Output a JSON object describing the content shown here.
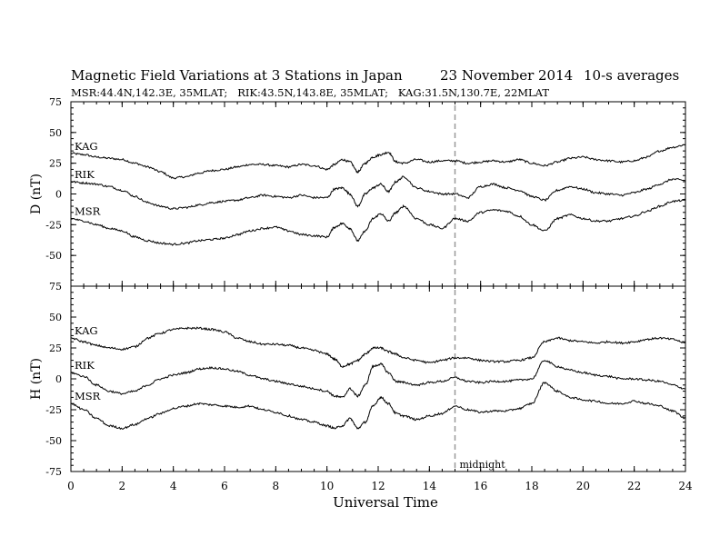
{
  "chart_data": {
    "type": "line",
    "title": "Magnetic Field Variations at 3 Stations in Japan",
    "date_text": "23 November 2014",
    "averaging": "10-s averages",
    "subtitle": "MSR:44.4N,142.3E, 35MLAT;   RIK:43.5N,143.8E, 35MLAT;   KAG:31.5N,130.7E, 22MLAT",
    "xlabel": "Universal Time",
    "xlim": [
      0,
      24
    ],
    "xticks": [
      0,
      2,
      4,
      6,
      8,
      10,
      12,
      14,
      16,
      18,
      20,
      22,
      24
    ],
    "midnight": {
      "x": 15,
      "label": "midnight"
    },
    "panels": [
      {
        "ylabel": "D (nT)",
        "ylim": [
          -75,
          75
        ],
        "yticks": [
          75,
          50,
          25,
          0,
          -25,
          -50,
          -75
        ],
        "series": [
          {
            "name": "KAG",
            "x": [
              0,
              0.5,
              1,
              1.5,
              2,
              2.5,
              3,
              3.5,
              4,
              4.5,
              5,
              5.5,
              6,
              6.5,
              7,
              7.5,
              8,
              8.5,
              9,
              9.5,
              10,
              10.3,
              10.6,
              10.9,
              11.2,
              11.5,
              11.8,
              12.1,
              12.4,
              12.7,
              13,
              13.5,
              14,
              14.5,
              15,
              15.5,
              16,
              16.5,
              17,
              17.5,
              18,
              18.5,
              19,
              19.5,
              20,
              20.5,
              21,
              21.5,
              22,
              22.5,
              23,
              23.5,
              24
            ],
            "values": [
              33,
              32,
              30,
              29,
              28,
              25,
              22,
              18,
              13,
              14,
              17,
              19,
              20,
              22,
              24,
              24,
              23,
              22,
              24,
              23,
              20,
              24,
              28,
              26,
              18,
              25,
              30,
              32,
              34,
              26,
              25,
              28,
              26,
              27,
              27,
              25,
              26,
              27,
              26,
              28,
              25,
              23,
              26,
              29,
              30,
              28,
              27,
              26,
              27,
              30,
              35,
              38,
              40
            ]
          },
          {
            "name": "RIK",
            "x": [
              0,
              0.5,
              1,
              1.5,
              2,
              2.5,
              3,
              3.5,
              4,
              4.5,
              5,
              5.5,
              6,
              6.5,
              7,
              7.5,
              8,
              8.5,
              9,
              9.5,
              10,
              10.3,
              10.6,
              10.9,
              11.2,
              11.5,
              11.8,
              12.1,
              12.4,
              12.7,
              13,
              13.5,
              14,
              14.5,
              15,
              15.5,
              16,
              16.5,
              17,
              17.5,
              18,
              18.5,
              19,
              19.5,
              20,
              20.5,
              21,
              21.5,
              22,
              22.5,
              23,
              23.5,
              24
            ],
            "values": [
              10,
              9,
              8,
              6,
              3,
              -2,
              -7,
              -10,
              -12,
              -11,
              -9,
              -7,
              -6,
              -5,
              -3,
              -1,
              -2,
              -3,
              -1,
              -3,
              -3,
              4,
              5,
              0,
              -10,
              0,
              5,
              8,
              2,
              10,
              14,
              5,
              2,
              0,
              0,
              -3,
              6,
              8,
              5,
              3,
              -2,
              -5,
              3,
              6,
              4,
              1,
              0,
              -1,
              1,
              4,
              8,
              12,
              11
            ]
          },
          {
            "name": "MSR",
            "x": [
              0,
              0.5,
              1,
              1.5,
              2,
              2.5,
              3,
              3.5,
              4,
              4.5,
              5,
              5.5,
              6,
              6.5,
              7,
              7.5,
              8,
              8.5,
              9,
              9.5,
              10,
              10.3,
              10.6,
              10.9,
              11.2,
              11.5,
              11.8,
              12.1,
              12.4,
              12.7,
              13,
              13.5,
              14,
              14.5,
              15,
              15.5,
              16,
              16.5,
              17,
              17.5,
              18,
              18.5,
              19,
              19.5,
              20,
              20.5,
              21,
              21.5,
              22,
              22.5,
              23,
              23.5,
              24
            ],
            "values": [
              -20,
              -22,
              -25,
              -28,
              -30,
              -35,
              -38,
              -40,
              -41,
              -40,
              -38,
              -37,
              -36,
              -33,
              -30,
              -28,
              -27,
              -30,
              -33,
              -34,
              -35,
              -27,
              -24,
              -28,
              -38,
              -30,
              -20,
              -16,
              -22,
              -15,
              -10,
              -20,
              -25,
              -28,
              -20,
              -22,
              -15,
              -13,
              -14,
              -18,
              -25,
              -30,
              -20,
              -17,
              -20,
              -22,
              -22,
              -20,
              -18,
              -14,
              -10,
              -6,
              -5
            ]
          }
        ]
      },
      {
        "ylabel": "H (nT)",
        "ylim": [
          -75,
          75
        ],
        "yticks": [
          75,
          50,
          25,
          0,
          -25,
          -50,
          -75
        ],
        "series": [
          {
            "name": "KAG",
            "x": [
              0,
              0.5,
              1,
              1.5,
              2,
              2.5,
              3,
              3.5,
              4,
              4.5,
              5,
              5.5,
              6,
              6.5,
              7,
              7.5,
              8,
              8.5,
              9,
              9.5,
              10,
              10.3,
              10.6,
              10.9,
              11.2,
              11.5,
              11.8,
              12.1,
              12.4,
              12.7,
              13,
              13.5,
              14,
              14.5,
              15,
              15.5,
              16,
              16.5,
              17,
              17.5,
              18,
              18.5,
              19,
              19.5,
              20,
              20.5,
              21,
              21.5,
              22,
              22.5,
              23,
              23.5,
              24
            ],
            "values": [
              33,
              30,
              27,
              25,
              24,
              26,
              33,
              37,
              40,
              41,
              41,
              40,
              38,
              33,
              30,
              28,
              28,
              27,
              25,
              23,
              20,
              16,
              10,
              12,
              15,
              20,
              25,
              25,
              22,
              20,
              17,
              15,
              13,
              15,
              17,
              17,
              15,
              14,
              14,
              15,
              17,
              30,
              33,
              31,
              30,
              29,
              30,
              29,
              30,
              32,
              33,
              32,
              29
            ]
          },
          {
            "name": "RIK",
            "x": [
              0,
              0.5,
              1,
              1.5,
              2,
              2.5,
              3,
              3.5,
              4,
              4.5,
              5,
              5.5,
              6,
              6.5,
              7,
              7.5,
              8,
              8.5,
              9,
              9.5,
              10,
              10.3,
              10.6,
              10.9,
              11.2,
              11.5,
              11.8,
              12.1,
              12.4,
              12.7,
              13,
              13.5,
              14,
              14.5,
              15,
              15.5,
              16,
              16.5,
              17,
              17.5,
              18,
              18.5,
              19,
              19.5,
              20,
              20.5,
              21,
              21.5,
              22,
              22.5,
              23,
              23.5,
              24
            ],
            "values": [
              5,
              2,
              -5,
              -10,
              -12,
              -10,
              -5,
              0,
              3,
              5,
              8,
              9,
              8,
              6,
              3,
              0,
              -2,
              -4,
              -6,
              -8,
              -10,
              -14,
              -15,
              -8,
              -14,
              -5,
              10,
              12,
              5,
              -2,
              -3,
              -5,
              -3,
              -2,
              1,
              -2,
              -3,
              -2,
              -2,
              -1,
              0,
              15,
              10,
              7,
              5,
              3,
              2,
              0,
              0,
              -1,
              -2,
              -5,
              -8
            ]
          },
          {
            "name": "MSR",
            "x": [
              0,
              0.5,
              1,
              1.5,
              2,
              2.5,
              3,
              3.5,
              4,
              4.5,
              5,
              5.5,
              6,
              6.5,
              7,
              7.5,
              8,
              8.5,
              9,
              9.5,
              10,
              10.3,
              10.6,
              10.9,
              11.2,
              11.5,
              11.8,
              12.1,
              12.4,
              12.7,
              13,
              13.5,
              14,
              14.5,
              15,
              15.5,
              16,
              16.5,
              17,
              17.5,
              18,
              18.5,
              19,
              19.5,
              20,
              20.5,
              21,
              21.5,
              22,
              22.5,
              23,
              23.5,
              24
            ],
            "values": [
              -20,
              -25,
              -32,
              -38,
              -40,
              -37,
              -32,
              -28,
              -24,
              -22,
              -20,
              -21,
              -22,
              -23,
              -22,
              -25,
              -27,
              -30,
              -33,
              -35,
              -38,
              -40,
              -38,
              -32,
              -40,
              -35,
              -22,
              -15,
              -20,
              -28,
              -30,
              -33,
              -30,
              -28,
              -22,
              -25,
              -27,
              -26,
              -26,
              -24,
              -20,
              -3,
              -10,
              -15,
              -17,
              -18,
              -20,
              -20,
              -18,
              -20,
              -22,
              -26,
              -32
            ]
          }
        ]
      }
    ]
  }
}
